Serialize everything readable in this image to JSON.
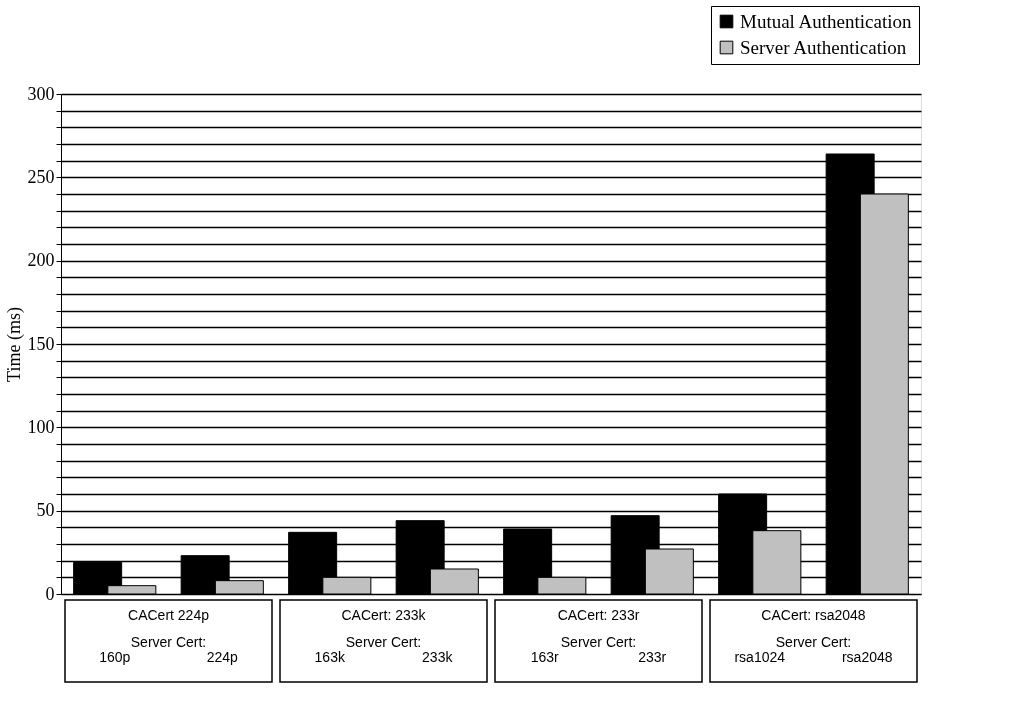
{
  "chart_data": {
    "type": "bar",
    "ylabel": "Time (ms)",
    "categories": [
      "160p",
      "224p",
      "163k",
      "233k",
      "163r",
      "233r",
      "rsa1024",
      "rsa2048"
    ],
    "series": [
      {
        "name": "Mutual Authentication",
        "color": "#000000",
        "values": [
          19,
          23,
          37,
          44,
          39,
          47,
          60,
          264
        ]
      },
      {
        "name": "Server Authentication",
        "color": "#c0c0c0",
        "values": [
          5,
          8,
          10,
          15,
          10,
          27,
          38,
          240
        ]
      }
    ],
    "annotations": [
      "CACert 224p",
      "Server Cert:",
      "CACert: 233k",
      "Server Cert:",
      "CACert: 233r",
      "Server Cert:",
      "CACert: rsa2048",
      "Server Cert:"
    ],
    "ylim": [
      0,
      300
    ],
    "yticks": [
      0,
      {
        "value": 10,
        "label": null
      },
      {
        "value": 20,
        "label": null
      },
      {
        "value": 30,
        "label": null
      },
      {
        "value": 40,
        "label": null
      },
      50,
      {
        "value": 60,
        "label": null
      },
      {
        "value": 70,
        "label": null
      },
      {
        "value": 80,
        "label": null
      },
      {
        "value": 90,
        "label": null
      },
      100,
      {
        "value": 110,
        "label": null
      },
      {
        "value": 120,
        "label": null
      },
      {
        "value": 130,
        "label": null
      },
      {
        "value": 140,
        "label": null
      },
      150,
      {
        "value": 160,
        "label": null
      },
      {
        "value": 170,
        "label": null
      },
      {
        "value": 180,
        "label": null
      },
      {
        "value": 190,
        "label": null
      },
      200,
      {
        "value": 210,
        "label": null
      },
      {
        "value": 220,
        "label": null
      },
      {
        "value": 230,
        "label": null
      },
      {
        "value": 240,
        "label": null
      },
      250,
      {
        "value": 260,
        "label": null
      },
      {
        "value": 270,
        "label": null
      },
      {
        "value": 280,
        "label": null
      },
      {
        "value": 290,
        "label": null
      },
      300
    ],
    "grid": "y",
    "legend": "top right"
  }
}
